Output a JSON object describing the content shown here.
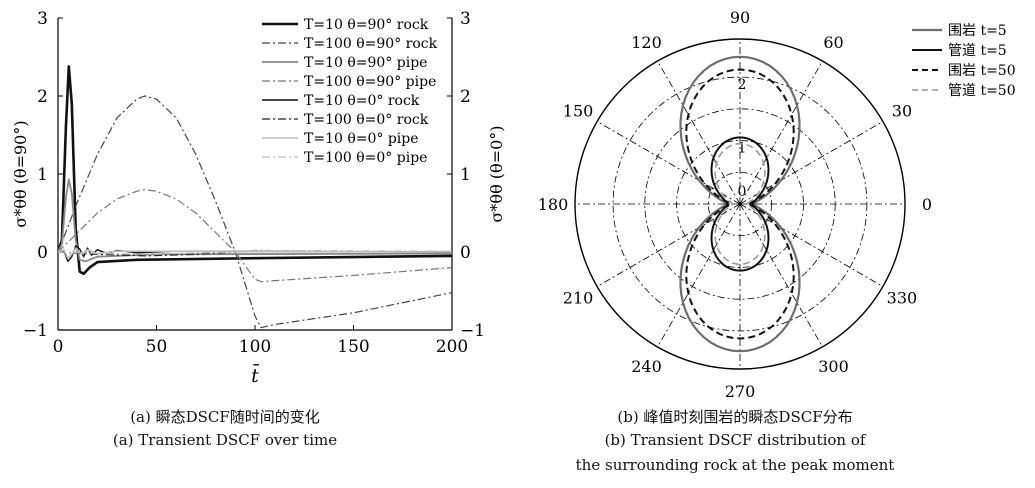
{
  "panel_a": {
    "caption_cn": "(a) 瞬态DSCF随时间的变化",
    "caption_en": "(a) Transient DSCF over time"
  },
  "panel_b": {
    "caption_cn": "(b) 峰值时刻围岩的瞬态DSCF分布",
    "caption_en_1": "(b) Transient DSCF distribution of",
    "caption_en_2": "the surrounding rock at the peak moment"
  },
  "chart_data": [
    {
      "type": "line",
      "xlabel": "t̄",
      "ylabel_left": "σ*θθ (θ=90°)",
      "ylabel_right": "σ*θθ (θ=0°)",
      "xlim": [
        0,
        200
      ],
      "ylim_left": [
        -1,
        3
      ],
      "ylim_right": [
        -1,
        3
      ],
      "x_ticks": [
        "0",
        "50",
        "100",
        "150",
        "200"
      ],
      "y_ticks_left": [
        "−1",
        "0",
        "1",
        "2",
        "3"
      ],
      "y_ticks_right": [
        "−1",
        "0",
        "1",
        "2",
        "3"
      ],
      "grid": false,
      "legend_position": "top-right",
      "series": [
        {
          "name": "T=10 θ=90° rock",
          "color": "#111111",
          "dash": "solid",
          "width": 2.6,
          "points": [
            [
              0,
              0
            ],
            [
              2,
              0.15
            ],
            [
              4,
              1.6
            ],
            [
              5.5,
              2.38
            ],
            [
              7,
              1.9
            ],
            [
              9,
              0.3
            ],
            [
              11,
              -0.25
            ],
            [
              13,
              -0.28
            ],
            [
              16,
              -0.2
            ],
            [
              20,
              -0.13
            ],
            [
              40,
              -0.1
            ],
            [
              100,
              -0.08
            ],
            [
              200,
              -0.05
            ]
          ]
        },
        {
          "name": "T=100 θ=90° rock",
          "color": "#444444",
          "dash": "dashdot",
          "width": 1.2,
          "points": [
            [
              0,
              0
            ],
            [
              5,
              0.32
            ],
            [
              10,
              0.65
            ],
            [
              20,
              1.25
            ],
            [
              30,
              1.72
            ],
            [
              40,
              1.96
            ],
            [
              44,
              2.0
            ],
            [
              50,
              1.96
            ],
            [
              60,
              1.72
            ],
            [
              70,
              1.25
            ],
            [
              80,
              0.65
            ],
            [
              90,
              0.0
            ],
            [
              100,
              -0.82
            ],
            [
              103,
              -0.97
            ],
            [
              110,
              -0.93
            ],
            [
              150,
              -0.78
            ],
            [
              200,
              -0.52
            ]
          ]
        },
        {
          "name": "T=10 θ=90° pipe",
          "color": "#888888",
          "dash": "solid",
          "width": 1.8,
          "points": [
            [
              0,
              0
            ],
            [
              2,
              0.1
            ],
            [
              4,
              0.7
            ],
            [
              5.5,
              0.93
            ],
            [
              7,
              0.75
            ],
            [
              9,
              0.15
            ],
            [
              11,
              -0.1
            ],
            [
              14,
              -0.12
            ],
            [
              20,
              -0.06
            ],
            [
              50,
              -0.03
            ],
            [
              200,
              -0.02
            ]
          ]
        },
        {
          "name": "T=100 θ=90° pipe",
          "color": "#777777",
          "dash": "dashdot",
          "width": 1.2,
          "points": [
            [
              0,
              0
            ],
            [
              10,
              0.25
            ],
            [
              20,
              0.5
            ],
            [
              30,
              0.68
            ],
            [
              40,
              0.78
            ],
            [
              44,
              0.8
            ],
            [
              50,
              0.78
            ],
            [
              60,
              0.68
            ],
            [
              70,
              0.5
            ],
            [
              80,
              0.25
            ],
            [
              90,
              0.0
            ],
            [
              100,
              -0.35
            ],
            [
              103,
              -0.38
            ],
            [
              150,
              -0.3
            ],
            [
              200,
              -0.2
            ]
          ]
        },
        {
          "name": "T=10 θ=0° rock",
          "color": "#111111",
          "dash": "solid",
          "width": 1.4,
          "points": [
            [
              0,
              0
            ],
            [
              3,
              0.02
            ],
            [
              5,
              -0.12
            ],
            [
              7,
              -0.06
            ],
            [
              9,
              0.08
            ],
            [
              11,
              0.04
            ],
            [
              13,
              -0.06
            ],
            [
              15,
              0.05
            ],
            [
              17,
              -0.04
            ],
            [
              20,
              0.03
            ],
            [
              25,
              -0.02
            ],
            [
              30,
              0.02
            ],
            [
              40,
              -0.01
            ],
            [
              60,
              0.01
            ],
            [
              200,
              0.0
            ]
          ]
        },
        {
          "name": "T=100 θ=0° rock",
          "color": "#222222",
          "dash": "dashdot",
          "width": 1.2,
          "points": [
            [
              0,
              0
            ],
            [
              20,
              -0.03
            ],
            [
              45,
              -0.05
            ],
            [
              70,
              -0.03
            ],
            [
              90,
              0.0
            ],
            [
              100,
              0.02
            ],
            [
              150,
              0.01
            ],
            [
              200,
              0.0
            ]
          ]
        },
        {
          "name": "T=10 θ=0° pipe",
          "color": "#bbbbbb",
          "dash": "solid",
          "width": 1.6,
          "points": [
            [
              0,
              0
            ],
            [
              3,
              0.03
            ],
            [
              5,
              -0.08
            ],
            [
              7,
              -0.03
            ],
            [
              9,
              0.05
            ],
            [
              12,
              -0.03
            ],
            [
              15,
              0.03
            ],
            [
              20,
              -0.02
            ],
            [
              30,
              0.01
            ],
            [
              200,
              0.0
            ]
          ]
        },
        {
          "name": "T=100 θ=0° pipe",
          "color": "#bbbbbb",
          "dash": "dashdot",
          "width": 1.2,
          "points": [
            [
              0,
              0
            ],
            [
              25,
              -0.02
            ],
            [
              45,
              -0.03
            ],
            [
              90,
              0.0
            ],
            [
              100,
              0.02
            ],
            [
              200,
              0.01
            ]
          ]
        }
      ]
    },
    {
      "type": "polar",
      "angle_labels": [
        {
          "deg": 0,
          "label": "0"
        },
        {
          "deg": 30,
          "label": "30"
        },
        {
          "deg": 60,
          "label": "60"
        },
        {
          "deg": 90,
          "label": "90"
        },
        {
          "deg": 120,
          "label": "120"
        },
        {
          "deg": 150,
          "label": "150"
        },
        {
          "deg": 180,
          "label": "180"
        },
        {
          "deg": 210,
          "label": "210"
        },
        {
          "deg": 240,
          "label": "240"
        },
        {
          "deg": 270,
          "label": "270"
        },
        {
          "deg": 300,
          "label": "300"
        },
        {
          "deg": 330,
          "label": "330"
        }
      ],
      "radial_labels": [
        "0",
        "1",
        "2"
      ],
      "rmax": 2.6,
      "legend_position": "top-right",
      "series": [
        {
          "name": "围岩 t=5",
          "color": "#6e6e6e",
          "dash": "solid",
          "width": 2.2,
          "peak": 2.32,
          "floor": 0.22
        },
        {
          "name": "管道 t=5",
          "color": "#111111",
          "dash": "solid",
          "width": 2.0,
          "peak": 1.05,
          "floor": 0.2
        },
        {
          "name": "围岩 t=50",
          "color": "#111111",
          "dash": "dashed",
          "width": 2.0,
          "peak": 2.12,
          "floor": 0.15
        },
        {
          "name": "管道 t=50",
          "color": "#999999",
          "dash": "dashed",
          "width": 1.6,
          "peak": 0.95,
          "floor": 0.12
        }
      ]
    }
  ]
}
